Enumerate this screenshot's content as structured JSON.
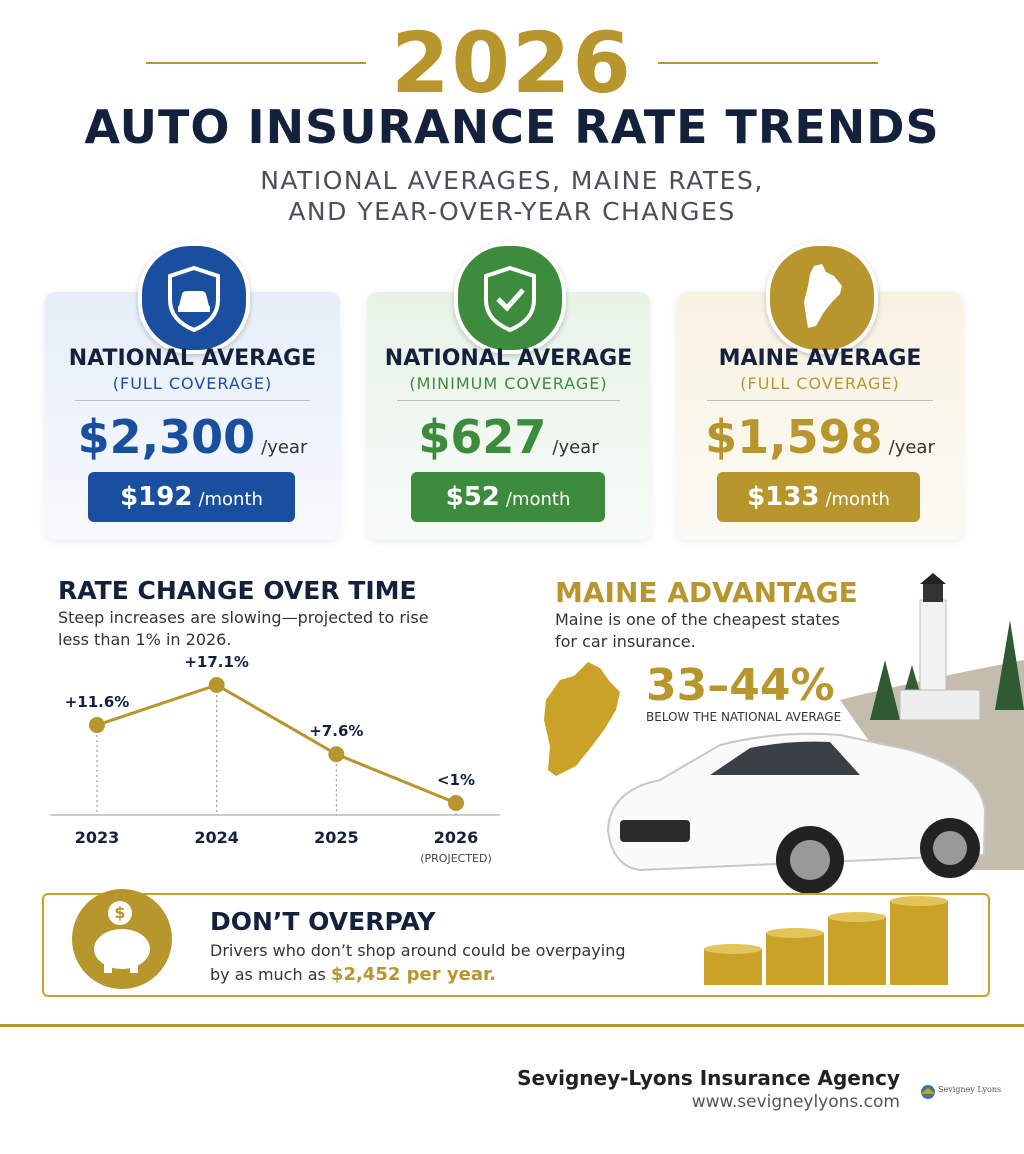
{
  "header": {
    "year": "2026",
    "title": "AUTO INSURANCE RATE TRENDS",
    "subtitle": [
      "NATIONAL AVERAGES, MAINE RATES,",
      "AND YEAR-OVER-YEAR CHANGES"
    ]
  },
  "cards": [
    {
      "title": "NATIONAL AVERAGE",
      "coverage": "(FULL COVERAGE)",
      "annual": "$2,300",
      "annual_unit": "/year",
      "monthly": "$192",
      "monthly_unit": "/month"
    },
    {
      "title": "NATIONAL AVERAGE",
      "coverage": "(MINIMUM COVERAGE)",
      "annual": "$627",
      "annual_unit": "/year",
      "monthly": "$52",
      "monthly_unit": "/month"
    },
    {
      "title": "MAINE AVERAGE",
      "coverage": "(FULL COVERAGE)",
      "annual": "$1,598",
      "annual_unit": "/year",
      "monthly": "$133",
      "monthly_unit": "/month"
    }
  ],
  "chart_data": {
    "type": "line",
    "title": "RATE CHANGE OVER TIME",
    "subtitle": "Steep increases are slowing—projected to rise less than 1% in 2026.",
    "categories": [
      "2023",
      "2024",
      "2025",
      "2026"
    ],
    "annotations": [
      null,
      null,
      null,
      "(PROJECTED)"
    ],
    "values": [
      11.6,
      17.1,
      7.6,
      0.9
    ],
    "value_labels": [
      "+11.6%",
      "+17.1%",
      "+7.6%",
      "<1%"
    ],
    "color": "#b8962e"
  },
  "maine": {
    "title": "MAINE ADVANTAGE",
    "text": "Maine is one of the cheapest states for car insurance.",
    "stat": "33–44%",
    "stat_label": "BELOW THE NATIONAL AVERAGE"
  },
  "banner": {
    "title": "DON’T OVERPAY",
    "text": "Drivers who don’t shop around could be overpaying by as much as ",
    "highlight": "$2,452 per year."
  },
  "footer": {
    "agency": "Sevigney-Lyons Insurance Agency",
    "url": "www.sevigneylyons.com",
    "logo": "Sevigney Lyons"
  }
}
